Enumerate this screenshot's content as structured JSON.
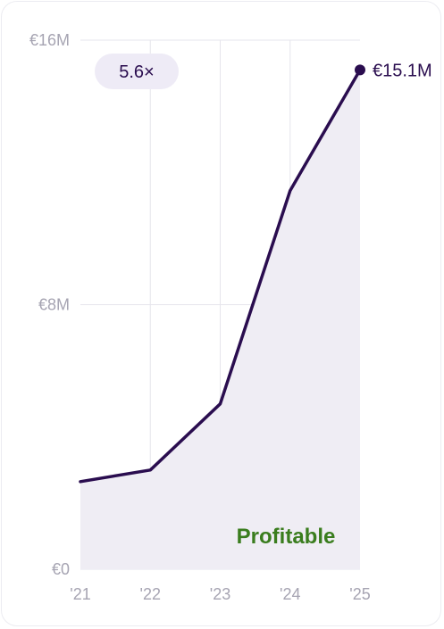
{
  "chart_data": {
    "type": "area",
    "x": [
      "'21",
      "'22",
      "'23",
      "'24",
      "'25"
    ],
    "series": [
      {
        "values": [
          5.3,
          6.0,
          10.0,
          22.9,
          30.2
        ]
      }
    ],
    "y_unit_note": "values in half-millions",
    "ylim": [
      0,
      32
    ],
    "y_ticks": [
      0,
      16,
      32
    ],
    "y_tick_labels": [
      "€0",
      "€8M",
      "€16M"
    ],
    "grid": true,
    "end_label": "€15.1M",
    "growth_badge": "5.6×",
    "annotation": "Profitable",
    "colors": {
      "line": "#2a0d4f",
      "area": "#efedf4",
      "grid": "#e6e5ec",
      "annotation": "#3a7d1e",
      "badge_bg": "#eeebf6"
    }
  }
}
